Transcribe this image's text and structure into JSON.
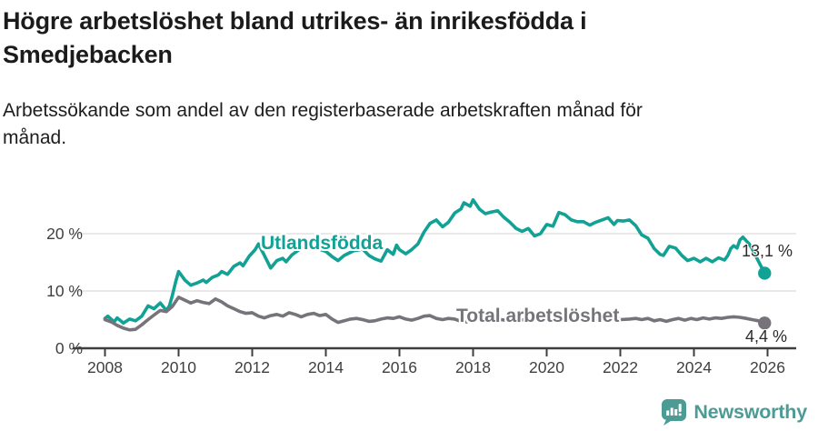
{
  "header": {
    "title_line1": "Högre arbetslöshet bland utrikes- än inrikesfödda i",
    "title_line2": "Smedjebacken",
    "subtitle_line1": "Arbetssökande som andel av den registerbaserade arbetskraften månad för",
    "subtitle_line2": "månad."
  },
  "chart_data": {
    "type": "line",
    "title": "Högre arbetslöshet bland utrikes- än inrikesfödda i Smedjebacken",
    "subtitle": "Arbetssökande som andel av den registerbaserade arbetskraften månad för månad.",
    "xlabel": "",
    "ylabel": "",
    "x_axis": {
      "ticks": [
        2008,
        2010,
        2012,
        2014,
        2016,
        2018,
        2020,
        2022,
        2024,
        2026
      ],
      "tick_labels": [
        "2008",
        "2010",
        "2012",
        "2014",
        "2016",
        "2018",
        "2020",
        "2022",
        "2024",
        "2026"
      ],
      "range": [
        2007.1,
        2026.8
      ]
    },
    "y_axis": {
      "ticks": [
        0,
        10,
        20
      ],
      "tick_labels": [
        "0 %",
        "10 %",
        "20 %"
      ],
      "unit": "%",
      "range": [
        0,
        27.5
      ],
      "grid": true
    },
    "colors": {
      "grid": "#dcdcdc",
      "axis": "#3f3f40",
      "tick_text": "#3f3f40"
    },
    "series": [
      {
        "name": "Utlandsfödda",
        "color": "#12a195",
        "end_value": 13.1,
        "end_label": "13,1 %",
        "points": [
          [
            2008.0,
            5.2
          ],
          [
            2008.08,
            5.6
          ],
          [
            2008.25,
            4.6
          ],
          [
            2008.33,
            5.3
          ],
          [
            2008.5,
            4.4
          ],
          [
            2008.67,
            5.1
          ],
          [
            2008.83,
            4.8
          ],
          [
            2009.0,
            5.6
          ],
          [
            2009.17,
            7.4
          ],
          [
            2009.33,
            6.9
          ],
          [
            2009.5,
            7.9
          ],
          [
            2009.67,
            6.6
          ],
          [
            2009.75,
            7.4
          ],
          [
            2009.83,
            9.2
          ],
          [
            2009.92,
            11.6
          ],
          [
            2010.0,
            13.4
          ],
          [
            2010.17,
            11.9
          ],
          [
            2010.33,
            11.0
          ],
          [
            2010.5,
            11.4
          ],
          [
            2010.67,
            11.9
          ],
          [
            2010.75,
            11.5
          ],
          [
            2010.92,
            12.4
          ],
          [
            2011.08,
            12.8
          ],
          [
            2011.17,
            13.4
          ],
          [
            2011.33,
            12.9
          ],
          [
            2011.5,
            14.3
          ],
          [
            2011.67,
            14.9
          ],
          [
            2011.75,
            14.4
          ],
          [
            2011.92,
            16.1
          ],
          [
            2012.08,
            17.2
          ],
          [
            2012.17,
            18.2
          ],
          [
            2012.33,
            16.2
          ],
          [
            2012.5,
            14.0
          ],
          [
            2012.67,
            15.3
          ],
          [
            2012.83,
            15.7
          ],
          [
            2012.92,
            15.1
          ],
          [
            2013.08,
            16.3
          ],
          [
            2013.25,
            17.1
          ],
          [
            2013.5,
            18.5
          ],
          [
            2013.67,
            18.2
          ],
          [
            2013.83,
            17.3
          ],
          [
            2014.0,
            16.9
          ],
          [
            2014.17,
            16.0
          ],
          [
            2014.33,
            15.3
          ],
          [
            2014.5,
            16.2
          ],
          [
            2014.75,
            17.0
          ],
          [
            2015.0,
            17.3
          ],
          [
            2015.17,
            16.2
          ],
          [
            2015.33,
            15.6
          ],
          [
            2015.5,
            15.2
          ],
          [
            2015.67,
            17.2
          ],
          [
            2015.83,
            16.4
          ],
          [
            2015.92,
            18.0
          ],
          [
            2016.0,
            17.2
          ],
          [
            2016.17,
            16.5
          ],
          [
            2016.33,
            17.2
          ],
          [
            2016.5,
            18.2
          ],
          [
            2016.67,
            20.3
          ],
          [
            2016.83,
            21.8
          ],
          [
            2017.0,
            22.4
          ],
          [
            2017.17,
            21.2
          ],
          [
            2017.33,
            22.0
          ],
          [
            2017.5,
            23.6
          ],
          [
            2017.67,
            24.3
          ],
          [
            2017.75,
            25.4
          ],
          [
            2017.92,
            24.8
          ],
          [
            2018.0,
            25.9
          ],
          [
            2018.17,
            24.3
          ],
          [
            2018.33,
            23.5
          ],
          [
            2018.5,
            23.8
          ],
          [
            2018.67,
            24.0
          ],
          [
            2018.83,
            22.9
          ],
          [
            2019.0,
            22.0
          ],
          [
            2019.17,
            20.9
          ],
          [
            2019.33,
            20.4
          ],
          [
            2019.5,
            20.9
          ],
          [
            2019.67,
            19.6
          ],
          [
            2019.83,
            20.0
          ],
          [
            2020.0,
            21.6
          ],
          [
            2020.17,
            21.3
          ],
          [
            2020.33,
            23.7
          ],
          [
            2020.5,
            23.3
          ],
          [
            2020.67,
            22.4
          ],
          [
            2020.83,
            22.1
          ],
          [
            2021.0,
            22.1
          ],
          [
            2021.17,
            21.5
          ],
          [
            2021.33,
            22.0
          ],
          [
            2021.5,
            22.4
          ],
          [
            2021.67,
            22.8
          ],
          [
            2021.83,
            21.6
          ],
          [
            2021.92,
            22.3
          ],
          [
            2022.08,
            22.2
          ],
          [
            2022.25,
            22.4
          ],
          [
            2022.42,
            21.4
          ],
          [
            2022.58,
            19.8
          ],
          [
            2022.75,
            19.2
          ],
          [
            2022.92,
            17.4
          ],
          [
            2023.08,
            16.4
          ],
          [
            2023.17,
            16.2
          ],
          [
            2023.33,
            17.8
          ],
          [
            2023.5,
            17.5
          ],
          [
            2023.67,
            16.2
          ],
          [
            2023.83,
            15.3
          ],
          [
            2024.0,
            15.7
          ],
          [
            2024.17,
            15.1
          ],
          [
            2024.33,
            15.7
          ],
          [
            2024.5,
            15.1
          ],
          [
            2024.67,
            15.8
          ],
          [
            2024.83,
            15.4
          ],
          [
            2024.92,
            16.2
          ],
          [
            2025.0,
            17.4
          ],
          [
            2025.08,
            17.9
          ],
          [
            2025.17,
            17.5
          ],
          [
            2025.25,
            18.9
          ],
          [
            2025.33,
            19.4
          ],
          [
            2025.5,
            18.2
          ],
          [
            2025.58,
            17.4
          ],
          [
            2025.75,
            15.2
          ],
          [
            2025.92,
            13.1
          ]
        ]
      },
      {
        "name": "Total arbetslöshet",
        "color": "#76747a",
        "end_value": 4.4,
        "end_label": "4,4 %",
        "points": [
          [
            2008.0,
            5.0
          ],
          [
            2008.17,
            4.6
          ],
          [
            2008.33,
            4.0
          ],
          [
            2008.5,
            3.5
          ],
          [
            2008.67,
            3.2
          ],
          [
            2008.83,
            3.3
          ],
          [
            2009.0,
            4.1
          ],
          [
            2009.17,
            5.0
          ],
          [
            2009.33,
            5.8
          ],
          [
            2009.5,
            6.6
          ],
          [
            2009.67,
            6.4
          ],
          [
            2009.83,
            7.3
          ],
          [
            2010.0,
            8.9
          ],
          [
            2010.17,
            8.4
          ],
          [
            2010.33,
            7.9
          ],
          [
            2010.5,
            8.3
          ],
          [
            2010.67,
            8.0
          ],
          [
            2010.83,
            7.8
          ],
          [
            2011.0,
            8.6
          ],
          [
            2011.17,
            8.1
          ],
          [
            2011.33,
            7.4
          ],
          [
            2011.5,
            6.9
          ],
          [
            2011.67,
            6.4
          ],
          [
            2011.83,
            6.1
          ],
          [
            2012.0,
            6.2
          ],
          [
            2012.17,
            5.6
          ],
          [
            2012.33,
            5.3
          ],
          [
            2012.5,
            5.7
          ],
          [
            2012.67,
            5.9
          ],
          [
            2012.83,
            5.6
          ],
          [
            2013.0,
            6.2
          ],
          [
            2013.17,
            5.9
          ],
          [
            2013.33,
            5.5
          ],
          [
            2013.5,
            5.9
          ],
          [
            2013.67,
            6.1
          ],
          [
            2013.83,
            5.7
          ],
          [
            2014.0,
            5.9
          ],
          [
            2014.17,
            5.1
          ],
          [
            2014.33,
            4.5
          ],
          [
            2014.5,
            4.8
          ],
          [
            2014.67,
            5.1
          ],
          [
            2014.83,
            5.2
          ],
          [
            2015.0,
            5.0
          ],
          [
            2015.17,
            4.7
          ],
          [
            2015.33,
            4.8
          ],
          [
            2015.5,
            5.1
          ],
          [
            2015.67,
            5.3
          ],
          [
            2015.83,
            5.2
          ],
          [
            2016.0,
            5.5
          ],
          [
            2016.17,
            5.1
          ],
          [
            2016.33,
            4.9
          ],
          [
            2016.5,
            5.2
          ],
          [
            2016.67,
            5.6
          ],
          [
            2016.83,
            5.7
          ],
          [
            2017.0,
            5.2
          ],
          [
            2017.17,
            5.0
          ],
          [
            2017.33,
            5.2
          ],
          [
            2017.5,
            5.1
          ],
          [
            2017.67,
            4.7
          ],
          [
            2017.83,
            4.6
          ],
          [
            2018.0,
            4.9
          ],
          [
            2018.25,
            5.1
          ],
          [
            2018.5,
            4.8
          ],
          [
            2018.75,
            5.0
          ],
          [
            2019.0,
            4.8
          ],
          [
            2019.25,
            5.0
          ],
          [
            2019.5,
            4.9
          ],
          [
            2019.75,
            5.1
          ],
          [
            2020.0,
            5.3
          ],
          [
            2020.25,
            5.6
          ],
          [
            2020.5,
            5.4
          ],
          [
            2020.75,
            5.2
          ],
          [
            2021.0,
            5.3
          ],
          [
            2021.25,
            5.1
          ],
          [
            2021.5,
            5.0
          ],
          [
            2021.75,
            4.9
          ],
          [
            2022.0,
            5.0
          ],
          [
            2022.25,
            5.1
          ],
          [
            2022.42,
            5.2
          ],
          [
            2022.58,
            5.0
          ],
          [
            2022.75,
            5.2
          ],
          [
            2022.92,
            4.8
          ],
          [
            2023.08,
            5.0
          ],
          [
            2023.25,
            4.7
          ],
          [
            2023.42,
            5.0
          ],
          [
            2023.58,
            5.2
          ],
          [
            2023.75,
            4.9
          ],
          [
            2023.92,
            5.2
          ],
          [
            2024.08,
            5.0
          ],
          [
            2024.25,
            5.3
          ],
          [
            2024.42,
            5.1
          ],
          [
            2024.58,
            5.3
          ],
          [
            2024.75,
            5.2
          ],
          [
            2024.92,
            5.4
          ],
          [
            2025.08,
            5.5
          ],
          [
            2025.25,
            5.4
          ],
          [
            2025.42,
            5.2
          ],
          [
            2025.58,
            5.0
          ],
          [
            2025.75,
            4.8
          ],
          [
            2025.92,
            4.4
          ]
        ]
      }
    ],
    "legend_position": "inline-labels"
  },
  "footer": {
    "brand": "Newsworthy",
    "brand_color": "#4d9b95",
    "logo_icon": "bar-chart-speech-bubble"
  }
}
